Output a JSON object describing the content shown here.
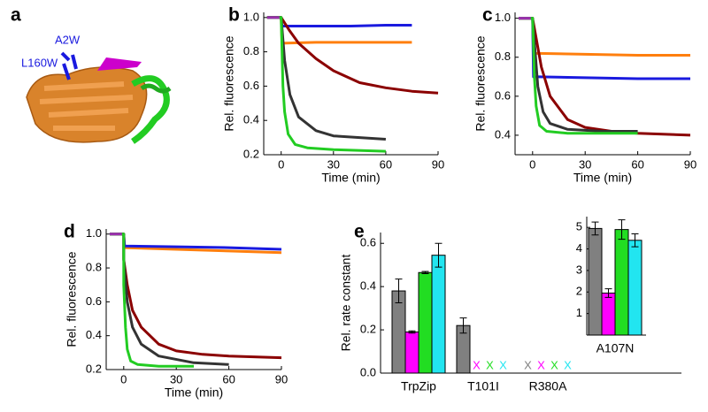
{
  "panel_a": {
    "label": "a",
    "annotations": [
      "A2W",
      "L160W"
    ]
  },
  "chart_data": [
    {
      "panel": "b",
      "type": "line",
      "xlabel": "Time (min)",
      "ylabel": "Rel. fluorescence",
      "xlim": [
        -10,
        90
      ],
      "xticks": [
        0,
        30,
        60,
        90
      ],
      "ylim": [
        0.2,
        1.03
      ],
      "yticks": [
        0.2,
        0.4,
        0.6,
        0.8,
        {
          "value": 1,
          "label": "1.0"
        }
      ],
      "series": [
        {
          "color": "#ff7f0e",
          "x": [
            -8,
            0,
            0.5,
            20,
            40,
            60,
            75
          ],
          "values": [
            1.0,
            1.0,
            0.85,
            0.855,
            0.855,
            0.855,
            0.855
          ]
        },
        {
          "color": "#1a1adf",
          "x": [
            -8,
            0,
            0.5,
            20,
            40,
            60,
            75
          ],
          "values": [
            1.0,
            1.0,
            0.95,
            0.95,
            0.95,
            0.955,
            0.955
          ]
        },
        {
          "color": "#8b0000",
          "x": [
            -8,
            0,
            5,
            10,
            20,
            30,
            45,
            60,
            75,
            90
          ],
          "values": [
            1.0,
            1.0,
            0.92,
            0.85,
            0.76,
            0.69,
            0.62,
            0.59,
            0.57,
            0.56
          ]
        },
        {
          "color": "#333333",
          "x": [
            -8,
            0,
            2,
            5,
            10,
            20,
            30,
            45,
            60
          ],
          "values": [
            1.0,
            1.0,
            0.75,
            0.55,
            0.42,
            0.34,
            0.31,
            0.3,
            0.29
          ]
        },
        {
          "color": "#22cc22",
          "x": [
            -8,
            0,
            1,
            2,
            4,
            8,
            15,
            30,
            60
          ],
          "values": [
            1.0,
            1.0,
            0.6,
            0.45,
            0.32,
            0.26,
            0.24,
            0.23,
            0.22
          ]
        },
        {
          "color": "#9b2fae",
          "x": [
            -8,
            -1
          ],
          "values": [
            1.0,
            1.0
          ]
        }
      ]
    },
    {
      "panel": "c",
      "type": "line",
      "xlabel": "Time (min)",
      "ylabel": "Rel. fluorescence",
      "xlim": [
        -10,
        90
      ],
      "xticks": [
        0,
        30,
        60,
        90
      ],
      "ylim": [
        0.3,
        1.03
      ],
      "yticks": [
        0.4,
        0.6,
        0.8,
        {
          "value": 1,
          "label": "1.0"
        }
      ],
      "series": [
        {
          "color": "#ff7f0e",
          "x": [
            -8,
            0,
            0.5,
            30,
            60,
            90
          ],
          "values": [
            1.0,
            1.0,
            0.82,
            0.815,
            0.81,
            0.81
          ]
        },
        {
          "color": "#1a1adf",
          "x": [
            -8,
            0,
            0.5,
            30,
            60,
            90
          ],
          "values": [
            1.0,
            1.0,
            0.7,
            0.695,
            0.69,
            0.69
          ]
        },
        {
          "color": "#8b0000",
          "x": [
            -8,
            0,
            5,
            10,
            20,
            30,
            45,
            60,
            90
          ],
          "values": [
            1.0,
            1.0,
            0.75,
            0.6,
            0.48,
            0.44,
            0.42,
            0.41,
            0.4
          ]
        },
        {
          "color": "#333333",
          "x": [
            -8,
            0,
            3,
            6,
            10,
            20,
            40,
            60
          ],
          "values": [
            1.0,
            1.0,
            0.65,
            0.52,
            0.46,
            0.43,
            0.42,
            0.42
          ]
        },
        {
          "color": "#22cc22",
          "x": [
            -8,
            0,
            1,
            2,
            4,
            8,
            20,
            60
          ],
          "values": [
            1.0,
            1.0,
            0.7,
            0.55,
            0.45,
            0.42,
            0.41,
            0.41
          ]
        },
        {
          "color": "#9b2fae",
          "x": [
            -8,
            -1
          ],
          "values": [
            1.0,
            1.0
          ]
        }
      ]
    },
    {
      "panel": "d",
      "type": "line",
      "xlabel": "Time (min)",
      "ylabel": "Rel. fluorescence",
      "xlim": [
        -10,
        90
      ],
      "xticks": [
        0,
        30,
        60,
        90
      ],
      "ylim": [
        0.2,
        1.03
      ],
      "yticks": [
        0.2,
        0.4,
        0.6,
        0.8,
        {
          "value": 1,
          "label": "1.0"
        }
      ],
      "series": [
        {
          "color": "#ff7f0e",
          "x": [
            -8,
            0,
            0.5,
            30,
            60,
            90
          ],
          "values": [
            1.0,
            1.0,
            0.92,
            0.91,
            0.9,
            0.89
          ]
        },
        {
          "color": "#1a1adf",
          "x": [
            -8,
            0,
            0.5,
            30,
            60,
            90
          ],
          "values": [
            1.0,
            1.0,
            0.93,
            0.925,
            0.92,
            0.91
          ]
        },
        {
          "color": "#8b0000",
          "x": [
            -8,
            0,
            0,
            2,
            5,
            10,
            20,
            30,
            45,
            60,
            90
          ],
          "values": [
            1.0,
            1.0,
            0.85,
            0.7,
            0.55,
            0.45,
            0.35,
            0.31,
            0.29,
            0.28,
            0.27
          ]
        },
        {
          "color": "#333333",
          "x": [
            -8,
            0,
            0,
            2,
            5,
            10,
            20,
            40,
            60
          ],
          "values": [
            1.0,
            1.0,
            0.85,
            0.6,
            0.45,
            0.35,
            0.28,
            0.24,
            0.23
          ]
        },
        {
          "color": "#22cc22",
          "x": [
            -8,
            0,
            0,
            1,
            2,
            4,
            8,
            20,
            40
          ],
          "values": [
            1.0,
            1.0,
            0.7,
            0.45,
            0.32,
            0.25,
            0.23,
            0.22,
            0.22
          ]
        },
        {
          "color": "#9b2fae",
          "x": [
            -8,
            -1
          ],
          "values": [
            1.0,
            1.0
          ]
        }
      ]
    },
    {
      "panel": "e",
      "type": "bar",
      "ylabel": "Rel. rate constant",
      "categories": [
        "TrpZip",
        "T101I",
        "R380A"
      ],
      "ylim": [
        0,
        0.65
      ],
      "yticks": [
        {
          "value": 0,
          "label": "0.0"
        },
        0.2,
        0.4,
        0.6
      ],
      "series": [
        {
          "color": "#808080",
          "values": [
            0.38,
            0.22,
            null
          ],
          "errors": [
            0.055,
            0.035,
            null
          ],
          "value_labels": [
            null,
            null,
            "X"
          ]
        },
        {
          "color": "#ff00ff",
          "values": [
            0.19,
            null,
            null
          ],
          "errors": [
            0.005,
            null,
            null
          ],
          "value_labels": [
            null,
            "X",
            "X"
          ]
        },
        {
          "color": "#22dd22",
          "values": [
            0.465,
            null,
            null
          ],
          "errors": [
            0.005,
            null,
            null
          ],
          "value_labels": [
            null,
            "X",
            "X"
          ]
        },
        {
          "color": "#22e5f0",
          "values": [
            0.545,
            null,
            null
          ],
          "errors": [
            0.055,
            null,
            null
          ],
          "value_labels": [
            null,
            "X",
            "X"
          ]
        }
      ]
    },
    {
      "type": "bar",
      "categories": [
        "A107N"
      ],
      "ylim": [
        0,
        5.5
      ],
      "yticks": [
        1,
        2,
        3,
        4,
        5
      ],
      "series": [
        {
          "color": "#808080",
          "values": [
            4.95
          ],
          "errors": [
            0.3
          ]
        },
        {
          "color": "#ff00ff",
          "values": [
            1.95
          ],
          "errors": [
            0.2
          ]
        },
        {
          "color": "#22dd22",
          "values": [
            4.9
          ],
          "errors": [
            0.45
          ]
        },
        {
          "color": "#22e5f0",
          "values": [
            4.4
          ],
          "errors": [
            0.3
          ]
        }
      ]
    }
  ]
}
